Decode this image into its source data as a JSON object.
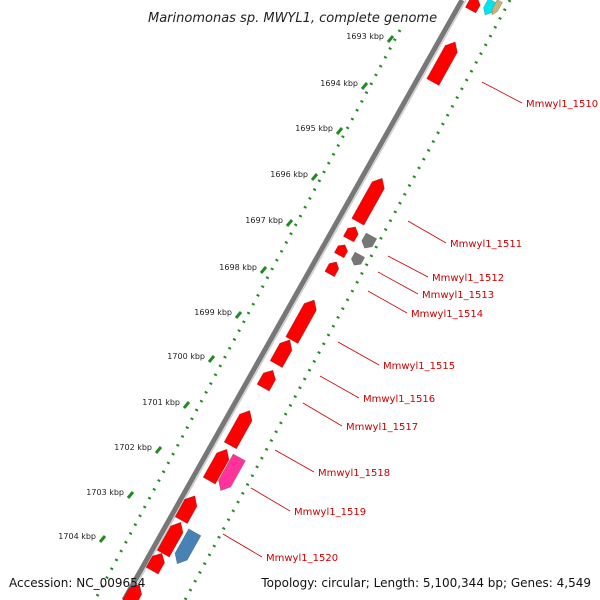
{
  "title": "Marinomonas sp. MWYL1, complete genome",
  "ticks": [
    "1693 kbp",
    "1694 kbp",
    "1695 kbp",
    "1696 kbp",
    "1697 kbp",
    "1698 kbp",
    "1699 kbp",
    "1700 kbp",
    "1701 kbp",
    "1702 kbp",
    "1703 kbp",
    "1704 kbp"
  ],
  "genes": [
    {
      "label": "Mmwyl1_1510",
      "color": "#ff0000"
    },
    {
      "label": "Mmwyl1_1511",
      "color": "#ff0000"
    },
    {
      "label": "Mmwyl1_1512",
      "color": "#ff0000"
    },
    {
      "label": "Mmwyl1_1513",
      "color": "#ff0000"
    },
    {
      "label": "Mmwyl1_1514",
      "color": "#ff0000"
    },
    {
      "label": "Mmwyl1_1515",
      "color": "#ff0000"
    },
    {
      "label": "Mmwyl1_1516",
      "color": "#ff0000"
    },
    {
      "label": "Mmwyl1_1517",
      "color": "#ff0000"
    },
    {
      "label": "Mmwyl1_1518",
      "color": "#ff0000"
    },
    {
      "label": "Mmwyl1_1519",
      "color": "#ff0000"
    },
    {
      "label": "Mmwyl1_1520",
      "color": "#ff0000"
    }
  ],
  "colors": {
    "cds": "#ff0000",
    "gray_feature": "#777777",
    "pink_feature": "#ff3399",
    "blue_feature": "#4682b4",
    "cyan_feature": "#00e5ee",
    "tan_feature": "#c8b478",
    "gc_dots": "#228b22",
    "backbone": "#888888",
    "label_line": "#cc0000"
  },
  "footer": {
    "accession": "Accession: NC_009654",
    "topology": "Topology: circular; Length: 5,100,344 bp; Genes: 4,549"
  }
}
